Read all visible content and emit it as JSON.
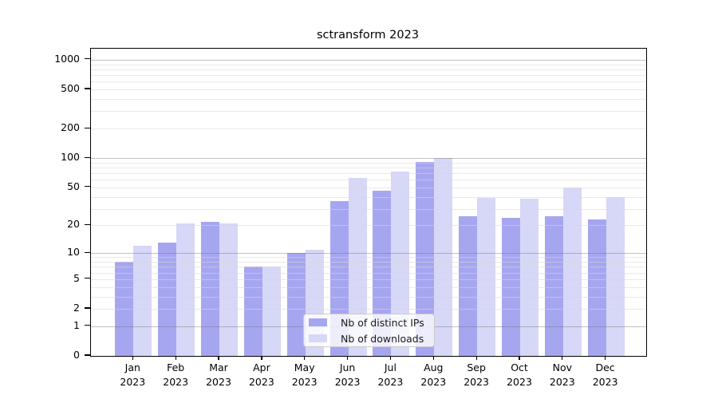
{
  "title": "sctransform 2023",
  "chart_data": {
    "type": "bar",
    "title": "sctransform 2023",
    "scale": "log1p (y position proportional to log10(1+value))",
    "months": [
      "Jan",
      "Feb",
      "Mar",
      "Apr",
      "May",
      "Jun",
      "Jul",
      "Aug",
      "Sep",
      "Oct",
      "Nov",
      "Dec"
    ],
    "year": "2023",
    "series": [
      {
        "name": "Nb of distinct IPs",
        "color": "#a6a6f0",
        "values": [
          8,
          13,
          22,
          7,
          10,
          36,
          46,
          92,
          25,
          24,
          25,
          23
        ]
      },
      {
        "name": "Nb of downloads",
        "color": "#d7d7f7",
        "values": [
          12,
          21,
          21,
          7,
          11,
          62,
          73,
          100,
          39,
          38,
          50,
          40
        ]
      }
    ],
    "y_ticks": [
      0,
      1,
      2,
      5,
      10,
      20,
      50,
      100,
      200,
      500,
      1000
    ],
    "ylim": [
      0,
      1280
    ],
    "grid": "on",
    "legend_position": "inside plot, lower center",
    "legend_entries": [
      "Nb of distinct IPs",
      "Nb of downloads"
    ]
  },
  "colors": {
    "bar_distinct_ips": "#a6a6f0",
    "bar_downloads": "#d7d7f7",
    "major_gridline": "#c2c2c2",
    "minor_gridline": "#ebebeb",
    "axis": "#000000",
    "text": "#111111",
    "legend_border": "#cccccc",
    "legend_background": "rgba(255,255,255,0.8)"
  }
}
